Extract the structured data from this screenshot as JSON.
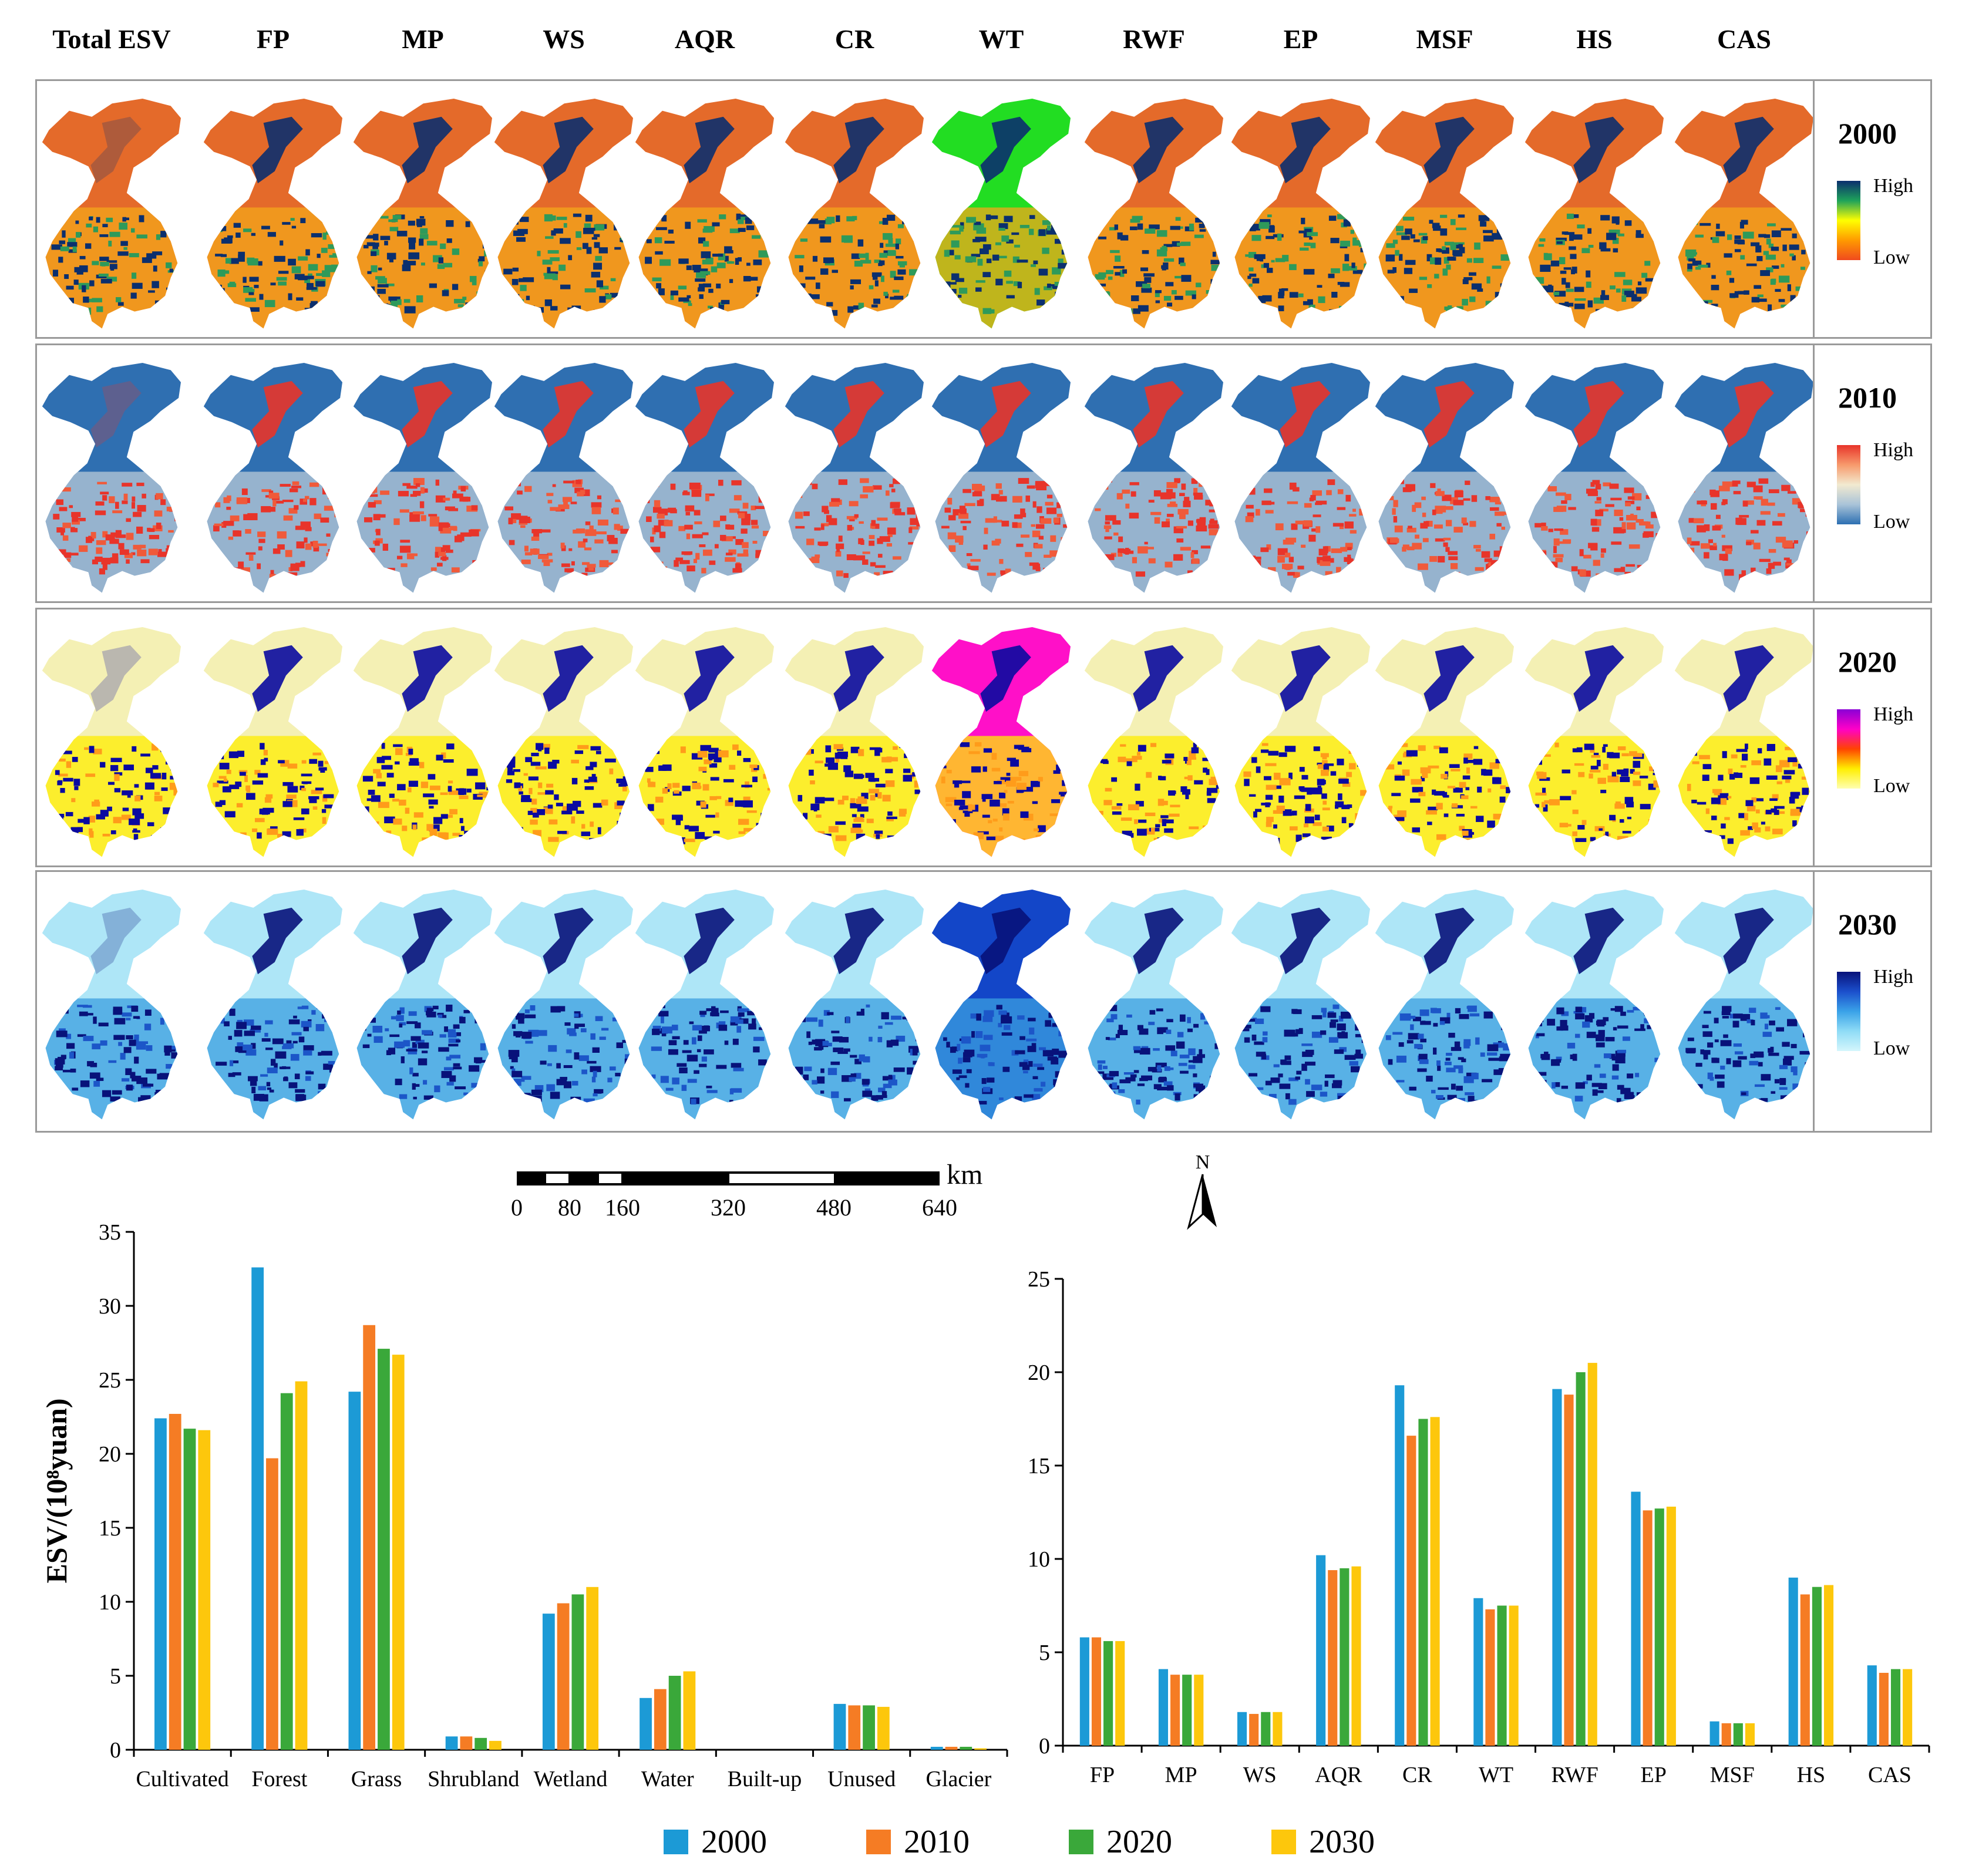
{
  "headers": [
    "Total ESV",
    "FP",
    "MP",
    "WS",
    "AQR",
    "CR",
    "WT",
    "RWF",
    "EP",
    "MSF",
    "HS",
    "CAS"
  ],
  "rows": [
    {
      "year": "2000",
      "high": "High",
      "low": "Low",
      "ramp": [
        "#0b2f6e",
        "#1ea35a",
        "#ffff00",
        "#ff9a00",
        "#f04a1e"
      ],
      "base": "#e46a2a",
      "dark": "#0b2f6e",
      "mid": "#f4a71b",
      "accent": "#2e9a5a"
    },
    {
      "year": "2010",
      "high": "High",
      "low": "Low",
      "ramp": [
        "#e8342a",
        "#f79a6c",
        "#f2ead0",
        "#a9c3d8",
        "#2c6fb2"
      ],
      "base": "#2f6fb1",
      "dark": "#e8342a",
      "mid": "#b9c9d8",
      "accent": "#f05a3a"
    },
    {
      "year": "2020",
      "high": "High",
      "low": "Low",
      "ramp": [
        "#8a00d6",
        "#ff00c8",
        "#ff4400",
        "#ffee00",
        "#ffffb0"
      ],
      "base": "#f4f0b4",
      "dark": "#0a0aa0",
      "mid": "#ffee00",
      "accent": "#ff9c1a"
    },
    {
      "year": "2030",
      "high": "High",
      "low": "Low",
      "ramp": [
        "#08127a",
        "#1b4fcc",
        "#3aa2e8",
        "#8fdcf6",
        "#d4f6fc"
      ],
      "base": "#aee6f7",
      "dark": "#08127a",
      "mid": "#3b9fe0",
      "accent": "#1c56c8"
    }
  ],
  "scalebar": {
    "unit": "km",
    "ticks": [
      "0",
      "80",
      "160",
      "320",
      "480",
      "640"
    ]
  },
  "north": "N",
  "legend": [
    {
      "label": "2000",
      "color": "#1c9ad6"
    },
    {
      "label": "2010",
      "color": "#f57c24"
    },
    {
      "label": "2020",
      "color": "#3aa83a"
    },
    {
      "label": "2030",
      "color": "#fdc70c"
    }
  ],
  "chart_data": [
    {
      "type": "bar",
      "title": "",
      "xlabel": "",
      "ylabel": "ESV/(10⁸yuan)",
      "ylim": [
        0,
        35
      ],
      "yticks": [
        "0",
        "5",
        "10",
        "15",
        "20",
        "25",
        "30",
        "35"
      ],
      "categories": [
        "Cultivated",
        "Forest",
        "Grass",
        "Shrubland",
        "Wetland",
        "Water",
        "Built-up",
        "Unused",
        "Glacier"
      ],
      "series": [
        {
          "name": "2000",
          "values": [
            22.4,
            32.6,
            24.2,
            0.9,
            9.2,
            3.5,
            0.0,
            3.1,
            0.2
          ]
        },
        {
          "name": "2010",
          "values": [
            22.7,
            19.7,
            28.7,
            0.9,
            9.9,
            4.1,
            0.0,
            3.0,
            0.2
          ]
        },
        {
          "name": "2020",
          "values": [
            21.7,
            24.1,
            27.1,
            0.8,
            10.5,
            5.0,
            0.0,
            3.0,
            0.2
          ]
        },
        {
          "name": "2030",
          "values": [
            21.6,
            24.9,
            26.7,
            0.6,
            11.0,
            5.3,
            0.0,
            2.9,
            0.1
          ]
        }
      ]
    },
    {
      "type": "bar",
      "title": "",
      "xlabel": "",
      "ylabel": "",
      "ylim": [
        0,
        25
      ],
      "yticks": [
        "0",
        "5",
        "10",
        "15",
        "20",
        "25"
      ],
      "categories": [
        "FP",
        "MP",
        "WS",
        "AQR",
        "CR",
        "WT",
        "RWF",
        "EP",
        "MSF",
        "HS",
        "CAS"
      ],
      "series": [
        {
          "name": "2000",
          "values": [
            5.8,
            4.1,
            1.8,
            10.2,
            19.3,
            7.9,
            19.1,
            13.6,
            1.3,
            9.0,
            4.3
          ]
        },
        {
          "name": "2010",
          "values": [
            5.8,
            3.8,
            1.7,
            9.4,
            16.6,
            7.3,
            18.8,
            12.6,
            1.2,
            8.1,
            3.9
          ]
        },
        {
          "name": "2020",
          "values": [
            5.6,
            3.8,
            1.8,
            9.5,
            17.5,
            7.5,
            20.0,
            12.7,
            1.2,
            8.5,
            4.1
          ]
        },
        {
          "name": "2030",
          "values": [
            5.6,
            3.8,
            1.8,
            9.6,
            17.6,
            7.5,
            20.5,
            12.8,
            1.2,
            8.6,
            4.1
          ]
        }
      ]
    }
  ]
}
